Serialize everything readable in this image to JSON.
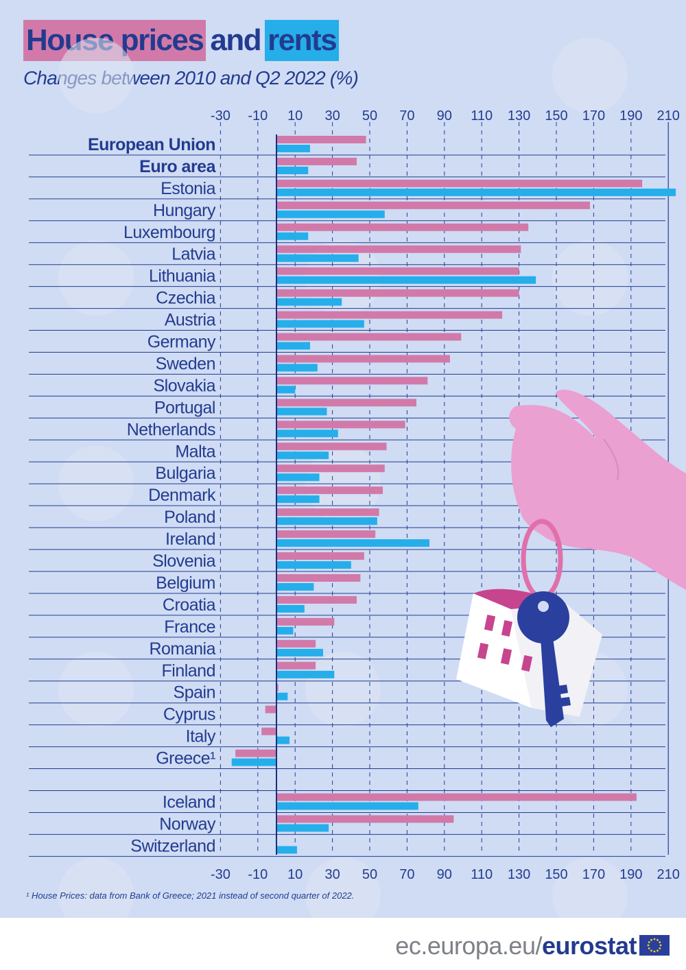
{
  "title": {
    "part1": "House prices",
    "part2": "and",
    "part3": "rents"
  },
  "subtitle": "Changes between 2010 and Q2 2022 (%)",
  "footnote": "¹ House Prices: data from Bank of Greece; 2021 instead of second quarter of 2022.",
  "footer": {
    "domain": "ec.europa.eu/",
    "brand": "eurostat"
  },
  "colors": {
    "house_prices": "#d17aa9",
    "rents": "#25aeea",
    "axis_text": "#233b8f",
    "background": "#cfdcf4"
  },
  "icons": [
    "eu-flag-icon",
    "hand-holding-key-illustration",
    "house-icon",
    "key-icon",
    "bta-watermark"
  ],
  "chart_data": {
    "type": "bar",
    "orientation": "horizontal",
    "title": "House prices and rents",
    "subtitle": "Changes between 2010 and Q2 2022 (%)",
    "xlim": [
      -30,
      215
    ],
    "ticks": [
      -30,
      -10,
      10,
      30,
      50,
      70,
      90,
      110,
      130,
      150,
      170,
      190,
      210
    ],
    "grid": true,
    "series": [
      {
        "key": "house_prices",
        "values": [
          48,
          43,
          196,
          168,
          135,
          131,
          130,
          130,
          121,
          99,
          93,
          81,
          75,
          69,
          59,
          58,
          57,
          55,
          53,
          47,
          45,
          43,
          31,
          21,
          21,
          1,
          -6,
          -8,
          -22,
          193,
          95,
          null
        ]
      },
      {
        "key": "rents",
        "values": [
          18,
          17,
          214,
          58,
          17,
          44,
          139,
          35,
          47,
          18,
          22,
          10,
          27,
          33,
          28,
          23,
          23,
          54,
          82,
          40,
          20,
          15,
          9,
          25,
          31,
          6,
          null,
          7,
          -24,
          76,
          28,
          11
        ]
      }
    ],
    "categories": [
      {
        "label": "European Union",
        "bold": true
      },
      {
        "label": "Euro area",
        "bold": true
      },
      {
        "label": "Estonia"
      },
      {
        "label": "Hungary"
      },
      {
        "label": "Luxembourg"
      },
      {
        "label": "Latvia"
      },
      {
        "label": "Lithuania"
      },
      {
        "label": "Czechia"
      },
      {
        "label": "Austria"
      },
      {
        "label": "Germany"
      },
      {
        "label": "Sweden"
      },
      {
        "label": "Slovakia"
      },
      {
        "label": "Portugal"
      },
      {
        "label": "Netherlands"
      },
      {
        "label": "Malta"
      },
      {
        "label": "Bulgaria"
      },
      {
        "label": "Denmark"
      },
      {
        "label": "Poland"
      },
      {
        "label": "Ireland"
      },
      {
        "label": "Slovenia"
      },
      {
        "label": "Belgium"
      },
      {
        "label": "Croatia"
      },
      {
        "label": "France"
      },
      {
        "label": "Romania"
      },
      {
        "label": "Finland"
      },
      {
        "label": "Spain"
      },
      {
        "label": "Cyprus"
      },
      {
        "label": "Italy"
      },
      {
        "label": "Greece¹"
      },
      {
        "label": "Iceland",
        "gap_before": true
      },
      {
        "label": "Norway"
      },
      {
        "label": "Switzerland"
      }
    ]
  }
}
